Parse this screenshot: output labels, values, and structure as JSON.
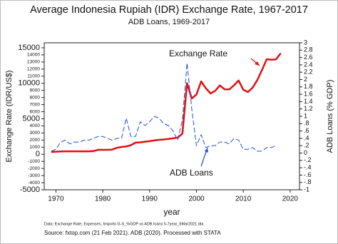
{
  "chart_data": {
    "type": "line",
    "title": "Average Indonesia Rupiah (IDR) Exchange Rate, 1967-2017",
    "subtitle": "ADB Loans, 1969-2017",
    "xlabel": "year",
    "ylabel": "Exchange Rate (IDR/US$)",
    "y2label": "ADB Loans (% GDP)",
    "annotations": [
      "Exchange Rate",
      "ADB Loans"
    ],
    "note": "Data: Exchange Rate, Expenses, Imports G-S_%GDP vs ADB loans 5-7year_6Mar2021.dta",
    "source": "Source: fxtop.com (21 Feb 2021). ADB (2020). Processed with STATA",
    "x": [
      1969,
      1970,
      1971,
      1972,
      1973,
      1974,
      1975,
      1976,
      1977,
      1978,
      1979,
      1980,
      1981,
      1982,
      1983,
      1984,
      1985,
      1986,
      1987,
      1988,
      1989,
      1990,
      1991,
      1992,
      1993,
      1994,
      1995,
      1996,
      1997,
      1998,
      1999,
      2000,
      2001,
      2002,
      2003,
      2004,
      2005,
      2006,
      2007,
      2008,
      2009,
      2010,
      2011,
      2012,
      2013,
      2014,
      2015,
      2016,
      2017,
      2018
    ],
    "series": [
      {
        "name": "Exchange Rate",
        "color": "#e01010",
        "width": 2.5,
        "style": "solid",
        "axis": "y",
        "values": [
          326,
          362,
          392,
          415,
          415,
          415,
          415,
          415,
          415,
          442,
          623,
          627,
          632,
          661,
          909,
          1026,
          1111,
          1283,
          1644,
          1686,
          1770,
          1843,
          1950,
          2030,
          2087,
          2161,
          2249,
          2342,
          2909,
          10014,
          7855,
          8422,
          10261,
          9311,
          8577,
          8939,
          9705,
          9159,
          9141,
          9699,
          10390,
          9090,
          8770,
          9387,
          10461,
          11865,
          13389,
          13308,
          13381,
          14237
        ]
      },
      {
        "name": "ADB Loans",
        "color": "#1f4fd8",
        "width": 1,
        "style": "dashed",
        "axis": "y2",
        "values": [
          0.05,
          0.1,
          0.3,
          0.35,
          0.25,
          0.3,
          0.3,
          0.35,
          0.35,
          0.4,
          0.45,
          0.45,
          0.4,
          0.35,
          0.4,
          0.4,
          0.95,
          0.45,
          0.45,
          0.85,
          0.75,
          0.85,
          1.0,
          0.95,
          0.8,
          0.75,
          0.6,
          0.35,
          0.9,
          2.45,
          1.2,
          0.2,
          0.5,
          0.15,
          0.2,
          0.2,
          0.3,
          0.3,
          0.25,
          0.4,
          0.35,
          0.1,
          0.1,
          0.15,
          0.05,
          0.05,
          0.15,
          0.15,
          0.2,
          null
        ]
      }
    ],
    "xlim": [
      1967.5,
      2022
    ],
    "xticks": [
      1970,
      1980,
      1990,
      2000,
      2010,
      2020
    ],
    "ylim": [
      -5000,
      15700
    ],
    "yticks": [
      -5000,
      -4000,
      -3000,
      -2000,
      -1000,
      0,
      1000,
      2000,
      3000,
      4000,
      5000,
      6000,
      7000,
      8000,
      9000,
      10000,
      11000,
      12000,
      13000,
      14000,
      15000
    ],
    "y2lim": [
      -1,
      3
    ],
    "y2ticks": [
      -1,
      {
        "value": -0.8,
        "label": "-.8"
      },
      {
        "value": -0.6,
        "label": "-.6"
      },
      {
        "value": -0.4,
        "label": "-.4"
      },
      {
        "value": -0.2,
        "label": "-.2"
      },
      0,
      {
        "value": 0.2,
        "label": ".2"
      },
      {
        "value": 0.4,
        "label": ".4"
      },
      {
        "value": 0.6,
        "label": ".6"
      },
      {
        "value": 0.8,
        "label": ".8"
      },
      1,
      1.2,
      1.4,
      1.6,
      1.8,
      2,
      2.2,
      2.4,
      2.6,
      2.8,
      3
    ]
  }
}
